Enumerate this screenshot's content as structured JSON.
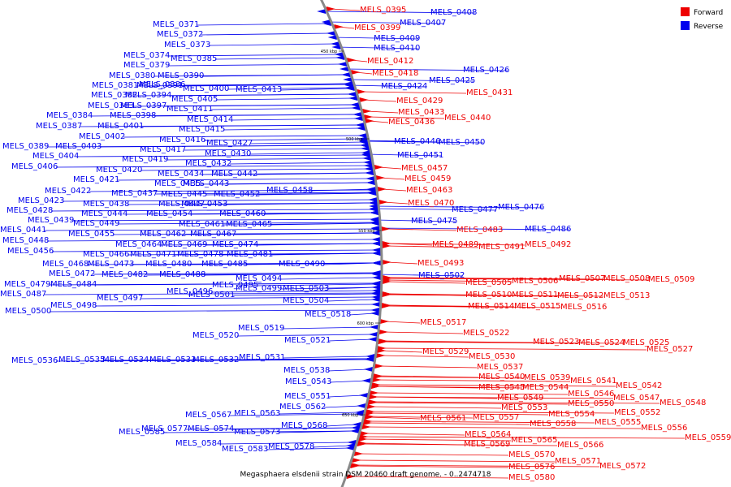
{
  "colors": {
    "forward": "#ee0000",
    "reverse": "#0000ee",
    "backbone": "#888888"
  },
  "legend": [
    {
      "label": "Forward",
      "color": "#ee0000"
    },
    {
      "label": "Reverse",
      "color": "#0000ee"
    }
  ],
  "caption": "Megasphaera elsdenii strain DSM 20460 draft genome. - 0..2474718",
  "ticks": [
    "450 kbp",
    "500 kbp",
    "550 kbp",
    "600 kbp",
    "650 kbp"
  ],
  "reverse_genes": [
    "MELS_0371",
    "MELS_0372",
    "MELS_0373",
    "MELS_0374",
    "MELS_0379",
    "MELS_0380",
    "MELS_0381",
    "MELS_0382",
    "MELS_0383",
    "MELS_0384",
    "MELS_0385",
    "MELS_0386",
    "MELS_0387",
    "MELS_0389",
    "MELS_0390",
    "MELS_0391",
    "MELS_0394",
    "MELS_0397",
    "MELS_0398",
    "MELS_0400",
    "MELS_0401",
    "MELS_0402",
    "MELS_0403",
    "MELS_0404",
    "MELS_0405",
    "MELS_0406",
    "MELS_0407",
    "MELS_0408",
    "MELS_0409",
    "MELS_0410",
    "MELS_0411",
    "MELS_0413",
    "MELS_0414",
    "MELS_0415",
    "MELS_0416",
    "MELS_0417",
    "MELS_0419",
    "MELS_0420",
    "MELS_0421",
    "MELS_0422",
    "MELS_0423",
    "MELS_0424",
    "MELS_0425",
    "MELS_0426",
    "MELS_0427",
    "MELS_0428",
    "MELS_0430",
    "MELS_0432",
    "MELS_0434",
    "MELS_0435",
    "MELS_0437",
    "MELS_0438",
    "MELS_0439",
    "MELS_0441",
    "MELS_0442",
    "MELS_0443",
    "MELS_0444",
    "MELS_0445",
    "MELS_0446",
    "MELS_0447",
    "MELS_0448",
    "MELS_0449",
    "MELS_0450",
    "MELS_0451",
    "MELS_0452",
    "MELS_0453",
    "MELS_0454",
    "MELS_0455",
    "MELS_0456",
    "MELS_0458",
    "MELS_0460",
    "MELS_0461",
    "MELS_0462",
    "MELS_0464",
    "MELS_0465",
    "MELS_0466",
    "MELS_0467",
    "MELS_0468",
    "MELS_0469",
    "MELS_0471",
    "MELS_0472",
    "MELS_0473",
    "MELS_0474",
    "MELS_0475",
    "MELS_0476",
    "MELS_0477",
    "MELS_0478",
    "MELS_0479",
    "MELS_0480",
    "MELS_0481",
    "MELS_0482",
    "MELS_0484",
    "MELS_0485",
    "MELS_0486",
    "MELS_0487",
    "MELS_0488",
    "MELS_0490",
    "MELS_0494",
    "MELS_0495",
    "MELS_0496",
    "MELS_0497",
    "MELS_0498",
    "MELS_0499",
    "MELS_0500",
    "MELS_0501",
    "MELS_0502",
    "MELS_0503",
    "MELS_0504",
    "MELS_0518",
    "MELS_0519",
    "MELS_0520",
    "MELS_0521",
    "MELS_0531",
    "MELS_0532",
    "MELS_0533",
    "MELS_0534",
    "MELS_0535",
    "MELS_0536",
    "MELS_0538",
    "MELS_0543",
    "MELS_0551",
    "MELS_0562",
    "MELS_0563",
    "MELS_0567",
    "MELS_0568",
    "MELS_0573",
    "MELS_0574",
    "MELS_0577",
    "MELS_0578",
    "MELS_0583",
    "MELS_0584",
    "MELS_0585"
  ],
  "forward_genes": [
    "MELS_0395",
    "MELS_0399",
    "MELS_0412",
    "MELS_0418",
    "MELS_0429",
    "MELS_0431",
    "MELS_0433",
    "MELS_0436",
    "MELS_0440",
    "MELS_0457",
    "MELS_0459",
    "MELS_0463",
    "MELS_0470",
    "MELS_0483",
    "MELS_0489",
    "MELS_0491",
    "MELS_0492",
    "MELS_0493",
    "MELS_0505",
    "MELS_0506",
    "MELS_0507",
    "MELS_0508",
    "MELS_0509",
    "MELS_0510",
    "MELS_0511",
    "MELS_0512",
    "MELS_0513",
    "MELS_0514",
    "MELS_0515",
    "MELS_0516",
    "MELS_0517",
    "MELS_0522",
    "MELS_0523",
    "MELS_0524",
    "MELS_0525",
    "MELS_0527",
    "MELS_0529",
    "MELS_0530",
    "MELS_0537",
    "MELS_0539",
    "MELS_0540",
    "MELS_0541",
    "MELS_0542",
    "MELS_0544",
    "MELS_0545",
    "MELS_0546",
    "MELS_0547",
    "MELS_0548",
    "MELS_0549",
    "MELS_0550",
    "MELS_0552",
    "MELS_0553",
    "MELS_0554",
    "MELS_0555",
    "MELS_0556",
    "MELS_0557",
    "MELS_0558",
    "MELS_0559",
    "MELS_0561",
    "MELS_0564",
    "MELS_0565",
    "MELS_0566",
    "MELS_0569",
    "MELS_0570",
    "MELS_0571",
    "MELS_0572",
    "MELS_0576",
    "MELS_0580"
  ]
}
